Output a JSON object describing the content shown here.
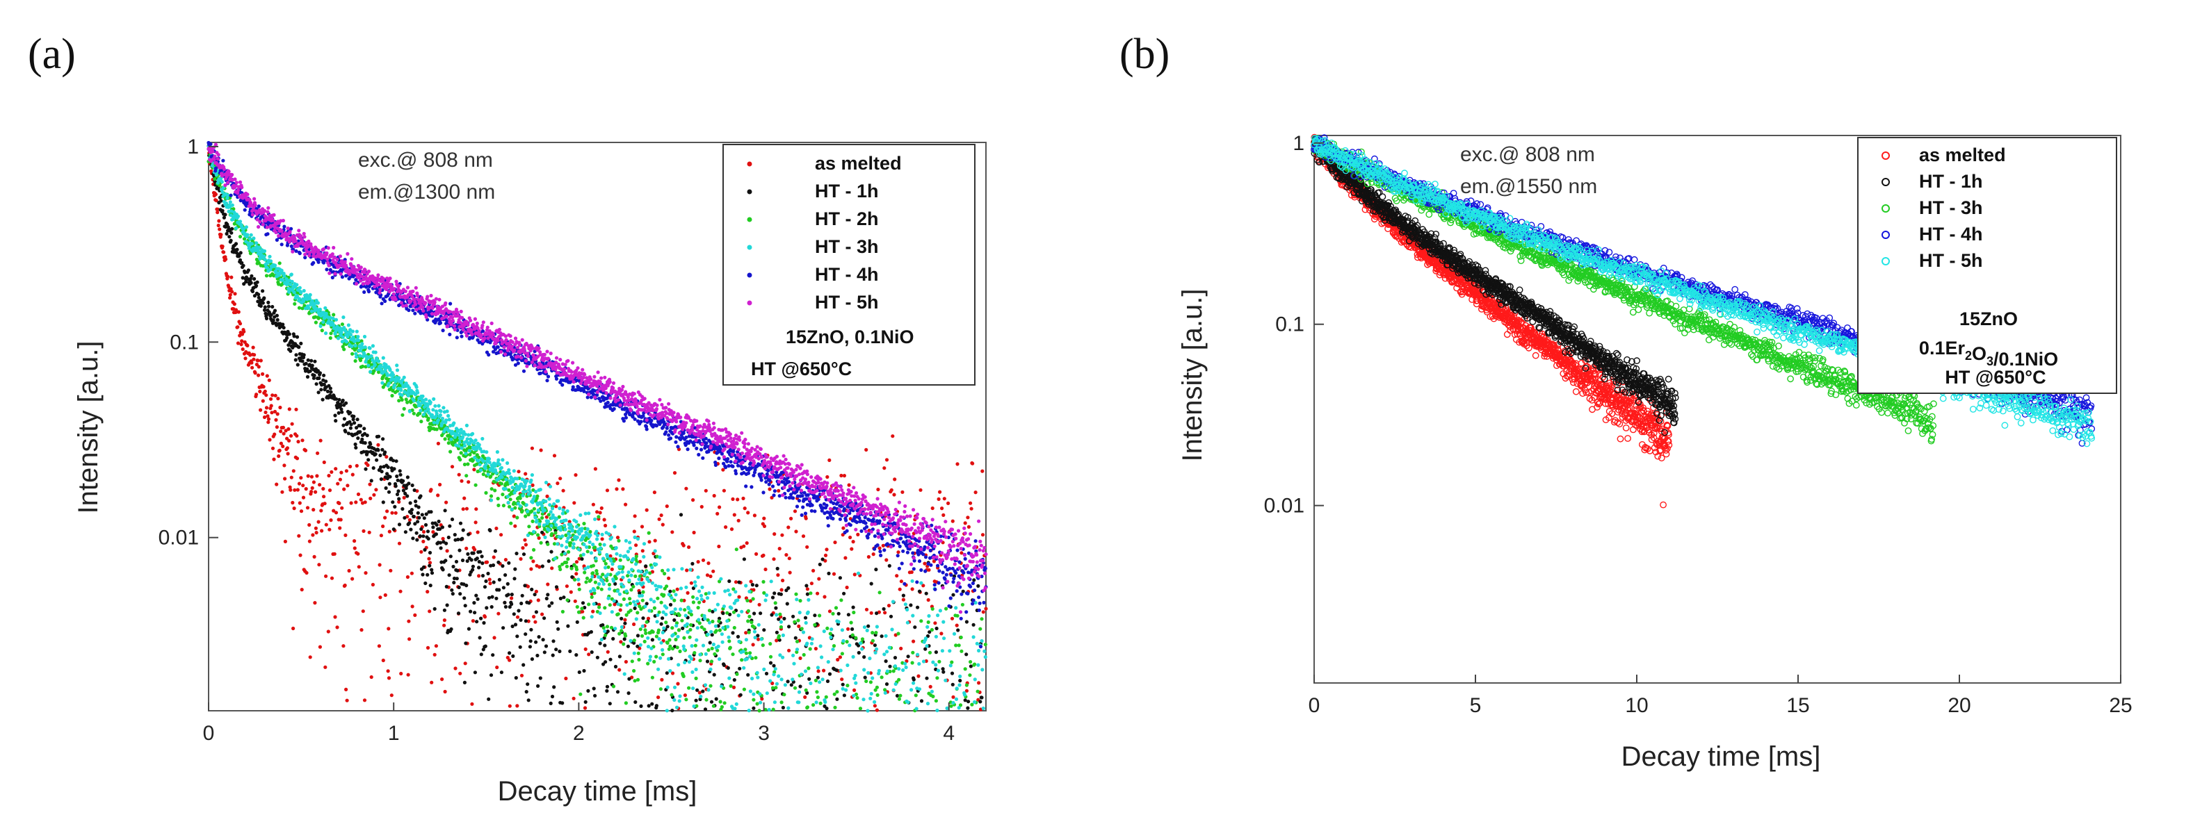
{
  "chart_data": [
    {
      "type": "scatter",
      "panel_label": "(a)",
      "xlabel": "Decay time [ms]",
      "ylabel": "Intensity [a.u.]",
      "xlim": [
        0,
        4.2
      ],
      "ylim": [
        0.0013,
        1.05
      ],
      "yscale": "log",
      "x_ticks": [
        0,
        1,
        2,
        3,
        4
      ],
      "y_ticks": [
        1,
        0.1,
        0.01
      ],
      "y_tick_labels": [
        "1",
        "0.1",
        "0.01"
      ],
      "annotation_lines": [
        "exc.@ 808 nm",
        "em.@1300 nm"
      ],
      "legend_position": "top-right",
      "legend_notes": [
        "15ZnO, 0.1NiO",
        "HT @650°C"
      ],
      "series": [
        {
          "name": "as melted",
          "color": "#e01010",
          "tau_ms": [
            0.045,
            0.21
          ],
          "amp": [
            0.78,
            0.22
          ],
          "noise": 0.01,
          "tmax": 4.2
        },
        {
          "name": "HT - 1h",
          "color": "#111111",
          "tau_ms": [
            0.06,
            0.34
          ],
          "amp": [
            0.63,
            0.37
          ],
          "noise": 0.003,
          "tmax": 4.2
        },
        {
          "name": "HT - 2h",
          "color": "#22cc22",
          "tau_ms": [
            0.08,
            0.5
          ],
          "amp": [
            0.55,
            0.45
          ],
          "noise": 0.002,
          "tmax": 4.2
        },
        {
          "name": "HT - 3h",
          "color": "#22d8d8",
          "tau_ms": [
            0.085,
            0.52
          ],
          "amp": [
            0.55,
            0.45
          ],
          "noise": 0.002,
          "tmax": 4.2
        },
        {
          "name": "HT - 4h",
          "color": "#1515cc",
          "tau_ms": [
            0.14,
            0.95
          ],
          "amp": [
            0.5,
            0.5
          ],
          "noise": 0.0013,
          "tmax": 4.2
        },
        {
          "name": "HT - 5h",
          "color": "#d020d0",
          "tau_ms": [
            0.15,
            1.0
          ],
          "amp": [
            0.5,
            0.5
          ],
          "noise": 0.0013,
          "tmax": 4.2
        }
      ]
    },
    {
      "type": "scatter",
      "panel_label": "(b)",
      "xlabel": "Decay time [ms]",
      "ylabel": "Intensity [a.u.]",
      "xlim": [
        0,
        25
      ],
      "ylim": [
        0.00105,
        1.1
      ],
      "yscale": "log",
      "x_ticks": [
        0,
        5,
        10,
        15,
        20,
        25
      ],
      "y_ticks": [
        1,
        0.1,
        0.01
      ],
      "y_tick_labels": [
        "1",
        "0.1",
        "0.01"
      ],
      "annotation_lines": [
        "exc.@ 808 nm",
        "em.@1550 nm"
      ],
      "legend_position": "top-right",
      "legend_notes": [
        "15ZnO",
        "0.1Er2O3/0.1NiO",
        "HT @650°C"
      ],
      "series": [
        {
          "name": "as melted",
          "color": "#ff1a1a",
          "tau_ms": [
            1.0,
            3.2
          ],
          "amp": [
            0.3,
            0.7
          ],
          "noise": 0.004,
          "tmax": 11.0
        },
        {
          "name": "HT - 1h",
          "color": "#111111",
          "tau_ms": [
            1.0,
            3.7
          ],
          "amp": [
            0.28,
            0.72
          ],
          "noise": 0.004,
          "tmax": 11.2
        },
        {
          "name": "HT - 3h",
          "color": "#22cc22",
          "tau_ms": [
            2.5,
            6.0
          ],
          "amp": [
            0.28,
            0.72
          ],
          "noise": 0.003,
          "tmax": 19.2
        },
        {
          "name": "HT - 4h",
          "color": "#1515dd",
          "tau_ms": [
            2.5,
            7.8
          ],
          "amp": [
            0.3,
            0.7
          ],
          "noise": 0.003,
          "tmax": 24.1
        },
        {
          "name": "HT - 5h",
          "color": "#22e5e5",
          "tau_ms": [
            2.5,
            7.4
          ],
          "amp": [
            0.3,
            0.7
          ],
          "noise": 0.003,
          "tmax": 24.1
        }
      ]
    }
  ]
}
